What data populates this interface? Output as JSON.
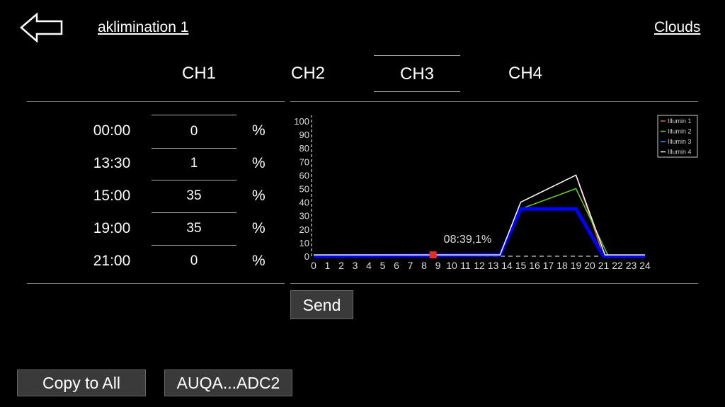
{
  "header": {
    "back_icon": "arrow-left-icon",
    "title": "aklimination 1",
    "right_link": "Clouds"
  },
  "tabs": [
    {
      "label": "CH1"
    },
    {
      "label": "CH2"
    },
    {
      "label": "CH3",
      "active": true
    },
    {
      "label": "CH4"
    }
  ],
  "schedule": [
    {
      "time": "00:00",
      "value": "0",
      "unit": "%"
    },
    {
      "time": "13:30",
      "value": "1",
      "unit": "%"
    },
    {
      "time": "15:00",
      "value": "35",
      "unit": "%"
    },
    {
      "time": "19:00",
      "value": "35",
      "unit": "%"
    },
    {
      "time": "21:00",
      "value": "0",
      "unit": "%"
    }
  ],
  "buttons": {
    "send": "Send",
    "copy_all": "Copy to All",
    "device": "AUQA...ADC2"
  },
  "chart_data": {
    "type": "line",
    "xlim": [
      0,
      24
    ],
    "ylim": [
      0,
      100
    ],
    "xticks": [
      "0",
      "1",
      "2",
      "3",
      "4",
      "5",
      "6",
      "7",
      "8",
      "9",
      "10",
      "11",
      "12",
      "13",
      "14",
      "15",
      "16",
      "17",
      "18",
      "19",
      "20",
      "21",
      "22",
      "23",
      "24"
    ],
    "yticks": [
      "0",
      "10",
      "20",
      "30",
      "40",
      "50",
      "60",
      "70",
      "80",
      "90",
      "100"
    ],
    "legend_position": "top-right",
    "series": [
      {
        "name": "Illumin 1",
        "color": "#e06060",
        "points": [
          [
            19,
            60
          ],
          [
            21,
            0
          ]
        ]
      },
      {
        "name": "Illumin 2",
        "color": "#66cc33",
        "points": [
          [
            15,
            35
          ],
          [
            19,
            50
          ],
          [
            21.3,
            1
          ]
        ]
      },
      {
        "name": "Illumin 3",
        "color": "#0000ff",
        "points": [
          [
            0,
            0
          ],
          [
            13.5,
            1
          ],
          [
            15,
            35
          ],
          [
            19,
            35
          ],
          [
            21,
            0
          ],
          [
            24,
            0
          ]
        ]
      },
      {
        "name": "Illumin 4",
        "color": "#ffffff",
        "points": [
          [
            0,
            1
          ],
          [
            13.5,
            1
          ],
          [
            15,
            40
          ],
          [
            19,
            60
          ],
          [
            21.1,
            1
          ],
          [
            24,
            1
          ]
        ]
      }
    ],
    "marker": {
      "x": 8.65,
      "y": 1,
      "color": "#e53020",
      "label": "08:39,1%"
    }
  }
}
